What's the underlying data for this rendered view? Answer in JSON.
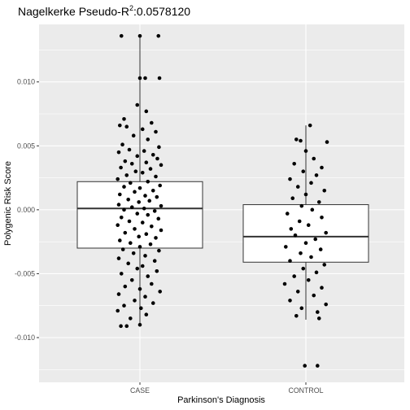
{
  "chart_data": {
    "type": "box-jitter",
    "title_prefix": "Nagelkerke Pseudo-R",
    "title_sup": "2",
    "title_suffix": ":0.0578120",
    "xlabel": "Parkinson's Diagnosis",
    "ylabel": "Polygenic Risk Score",
    "categories": [
      "CASE",
      "CONTROL"
    ],
    "ylim": [
      -0.0135,
      0.0145
    ],
    "yticks": [
      {
        "value": 0.01,
        "label": "0.010"
      },
      {
        "value": 0.005,
        "label": "0.005"
      },
      {
        "value": 0.0,
        "label": "0.000"
      },
      {
        "value": -0.005,
        "label": "-0.005"
      },
      {
        "value": -0.01,
        "label": "-0.010"
      }
    ],
    "grid": true,
    "boxes": [
      {
        "category": "CASE",
        "whisker_low": -0.0091,
        "q1": -0.003,
        "median": 0.0001,
        "q3": 0.0022,
        "whisker_high": 0.0136
      },
      {
        "category": "CONTROL",
        "whisker_low": -0.0086,
        "q1": -0.0041,
        "median": -0.0021,
        "q3": 0.0004,
        "whisker_high": 0.0066
      }
    ],
    "points": [
      {
        "category": "CASE",
        "offset": -0.35,
        "y": 0.0136
      },
      {
        "category": "CASE",
        "offset": 0.0,
        "y": 0.0136
      },
      {
        "category": "CASE",
        "offset": 0.35,
        "y": 0.0136
      },
      {
        "category": "CASE",
        "offset": 0.0,
        "y": 0.0103
      },
      {
        "category": "CASE",
        "offset": 0.1,
        "y": 0.0103
      },
      {
        "category": "CASE",
        "offset": 0.37,
        "y": 0.0103
      },
      {
        "category": "CASE",
        "offset": -0.05,
        "y": 0.0082
      },
      {
        "category": "CASE",
        "offset": 0.12,
        "y": 0.0077
      },
      {
        "category": "CASE",
        "offset": -0.3,
        "y": 0.0071
      },
      {
        "category": "CASE",
        "offset": 0.22,
        "y": 0.0068
      },
      {
        "category": "CASE",
        "offset": -0.38,
        "y": 0.0066
      },
      {
        "category": "CASE",
        "offset": -0.25,
        "y": 0.0065
      },
      {
        "category": "CASE",
        "offset": 0.05,
        "y": 0.0063
      },
      {
        "category": "CASE",
        "offset": 0.3,
        "y": 0.0061
      },
      {
        "category": "CASE",
        "offset": -0.12,
        "y": 0.0058
      },
      {
        "category": "CASE",
        "offset": 0.15,
        "y": 0.0055
      },
      {
        "category": "CASE",
        "offset": -0.33,
        "y": 0.0051
      },
      {
        "category": "CASE",
        "offset": 0.36,
        "y": 0.0049
      },
      {
        "category": "CASE",
        "offset": -0.2,
        "y": 0.0047
      },
      {
        "category": "CASE",
        "offset": 0.08,
        "y": 0.0046
      },
      {
        "category": "CASE",
        "offset": -0.4,
        "y": 0.0045
      },
      {
        "category": "CASE",
        "offset": 0.25,
        "y": 0.0043
      },
      {
        "category": "CASE",
        "offset": -0.05,
        "y": 0.0042
      },
      {
        "category": "CASE",
        "offset": 0.33,
        "y": 0.004
      },
      {
        "category": "CASE",
        "offset": -0.28,
        "y": 0.0038
      },
      {
        "category": "CASE",
        "offset": 0.12,
        "y": 0.0037
      },
      {
        "category": "CASE",
        "offset": -0.15,
        "y": 0.0036
      },
      {
        "category": "CASE",
        "offset": 0.4,
        "y": 0.0035
      },
      {
        "category": "CASE",
        "offset": -0.36,
        "y": 0.0033
      },
      {
        "category": "CASE",
        "offset": 0.2,
        "y": 0.0032
      },
      {
        "category": "CASE",
        "offset": -0.08,
        "y": 0.003
      },
      {
        "category": "CASE",
        "offset": 0.05,
        "y": 0.0029
      },
      {
        "category": "CASE",
        "offset": -0.25,
        "y": 0.0027
      },
      {
        "category": "CASE",
        "offset": 0.3,
        "y": 0.0026
      },
      {
        "category": "CASE",
        "offset": -0.42,
        "y": 0.0024
      },
      {
        "category": "CASE",
        "offset": 0.15,
        "y": 0.0022
      },
      {
        "category": "CASE",
        "offset": -0.18,
        "y": 0.0021
      },
      {
        "category": "CASE",
        "offset": 0.38,
        "y": 0.0019
      },
      {
        "category": "CASE",
        "offset": -0.3,
        "y": 0.0018
      },
      {
        "category": "CASE",
        "offset": 0.0,
        "y": 0.0017
      },
      {
        "category": "CASE",
        "offset": 0.25,
        "y": 0.0015
      },
      {
        "category": "CASE",
        "offset": -0.1,
        "y": 0.0014
      },
      {
        "category": "CASE",
        "offset": -0.38,
        "y": 0.0012
      },
      {
        "category": "CASE",
        "offset": 0.1,
        "y": 0.0011
      },
      {
        "category": "CASE",
        "offset": 0.32,
        "y": 0.001
      },
      {
        "category": "CASE",
        "offset": -0.22,
        "y": 0.0008
      },
      {
        "category": "CASE",
        "offset": 0.18,
        "y": 0.0007
      },
      {
        "category": "CASE",
        "offset": -0.02,
        "y": 0.0006
      },
      {
        "category": "CASE",
        "offset": -0.4,
        "y": 0.0004
      },
      {
        "category": "CASE",
        "offset": 0.4,
        "y": 0.0003
      },
      {
        "category": "CASE",
        "offset": -0.15,
        "y": 0.0002
      },
      {
        "category": "CASE",
        "offset": 0.08,
        "y": 0.0001
      },
      {
        "category": "CASE",
        "offset": -0.3,
        "y": 0.0
      },
      {
        "category": "CASE",
        "offset": 0.28,
        "y": -0.0001
      },
      {
        "category": "CASE",
        "offset": -0.05,
        "y": -0.0003
      },
      {
        "category": "CASE",
        "offset": 0.15,
        "y": -0.0004
      },
      {
        "category": "CASE",
        "offset": -0.35,
        "y": -0.0006
      },
      {
        "category": "CASE",
        "offset": 0.35,
        "y": -0.0007
      },
      {
        "category": "CASE",
        "offset": -0.2,
        "y": -0.0009
      },
      {
        "category": "CASE",
        "offset": 0.05,
        "y": -0.001
      },
      {
        "category": "CASE",
        "offset": -0.42,
        "y": -0.0012
      },
      {
        "category": "CASE",
        "offset": 0.22,
        "y": -0.0013
      },
      {
        "category": "CASE",
        "offset": -0.1,
        "y": -0.0015
      },
      {
        "category": "CASE",
        "offset": 0.4,
        "y": -0.0016
      },
      {
        "category": "CASE",
        "offset": -0.28,
        "y": -0.0018
      },
      {
        "category": "CASE",
        "offset": 0.12,
        "y": -0.0019
      },
      {
        "category": "CASE",
        "offset": -0.02,
        "y": -0.0021
      },
      {
        "category": "CASE",
        "offset": 0.3,
        "y": -0.0022
      },
      {
        "category": "CASE",
        "offset": -0.38,
        "y": -0.0024
      },
      {
        "category": "CASE",
        "offset": -0.18,
        "y": -0.0026
      },
      {
        "category": "CASE",
        "offset": 0.2,
        "y": -0.0027
      },
      {
        "category": "CASE",
        "offset": 0.0,
        "y": -0.0029
      },
      {
        "category": "CASE",
        "offset": -0.32,
        "y": -0.0031
      },
      {
        "category": "CASE",
        "offset": 0.36,
        "y": -0.0032
      },
      {
        "category": "CASE",
        "offset": -0.12,
        "y": -0.0034
      },
      {
        "category": "CASE",
        "offset": 0.1,
        "y": -0.0036
      },
      {
        "category": "CASE",
        "offset": -0.4,
        "y": -0.0038
      },
      {
        "category": "CASE",
        "offset": 0.28,
        "y": -0.004
      },
      {
        "category": "CASE",
        "offset": -0.22,
        "y": -0.0042
      },
      {
        "category": "CASE",
        "offset": 0.05,
        "y": -0.0044
      },
      {
        "category": "CASE",
        "offset": -0.05,
        "y": -0.0046
      },
      {
        "category": "CASE",
        "offset": 0.32,
        "y": -0.0048
      },
      {
        "category": "CASE",
        "offset": -0.35,
        "y": -0.005
      },
      {
        "category": "CASE",
        "offset": 0.15,
        "y": -0.0052
      },
      {
        "category": "CASE",
        "offset": -0.15,
        "y": -0.0055
      },
      {
        "category": "CASE",
        "offset": 0.22,
        "y": -0.0058
      },
      {
        "category": "CASE",
        "offset": -0.28,
        "y": -0.006
      },
      {
        "category": "CASE",
        "offset": 0.0,
        "y": -0.0062
      },
      {
        "category": "CASE",
        "offset": 0.38,
        "y": -0.0064
      },
      {
        "category": "CASE",
        "offset": -0.4,
        "y": -0.0066
      },
      {
        "category": "CASE",
        "offset": 0.1,
        "y": -0.0068
      },
      {
        "category": "CASE",
        "offset": -0.1,
        "y": -0.0071
      },
      {
        "category": "CASE",
        "offset": 0.25,
        "y": -0.0073
      },
      {
        "category": "CASE",
        "offset": -0.3,
        "y": -0.0075
      },
      {
        "category": "CASE",
        "offset": 0.02,
        "y": -0.0077
      },
      {
        "category": "CASE",
        "offset": -0.42,
        "y": -0.0079
      },
      {
        "category": "CASE",
        "offset": 0.12,
        "y": -0.0082
      },
      {
        "category": "CASE",
        "offset": -0.18,
        "y": -0.0085
      },
      {
        "category": "CASE",
        "offset": -0.36,
        "y": -0.0091
      },
      {
        "category": "CASE",
        "offset": -0.25,
        "y": -0.0091
      },
      {
        "category": "CASE",
        "offset": 0.0,
        "y": -0.009
      },
      {
        "category": "CONTROL",
        "offset": 0.08,
        "y": 0.0066
      },
      {
        "category": "CONTROL",
        "offset": -0.18,
        "y": 0.0055
      },
      {
        "category": "CONTROL",
        "offset": -0.1,
        "y": 0.0054
      },
      {
        "category": "CONTROL",
        "offset": 0.4,
        "y": 0.0053
      },
      {
        "category": "CONTROL",
        "offset": 0.0,
        "y": 0.0046
      },
      {
        "category": "CONTROL",
        "offset": 0.15,
        "y": 0.004
      },
      {
        "category": "CONTROL",
        "offset": -0.22,
        "y": 0.0036
      },
      {
        "category": "CONTROL",
        "offset": 0.3,
        "y": 0.0033
      },
      {
        "category": "CONTROL",
        "offset": -0.05,
        "y": 0.003
      },
      {
        "category": "CONTROL",
        "offset": 0.2,
        "y": 0.0027
      },
      {
        "category": "CONTROL",
        "offset": -0.3,
        "y": 0.0024
      },
      {
        "category": "CONTROL",
        "offset": 0.1,
        "y": 0.0021
      },
      {
        "category": "CONTROL",
        "offset": -0.15,
        "y": 0.0018
      },
      {
        "category": "CONTROL",
        "offset": 0.35,
        "y": 0.0015
      },
      {
        "category": "CONTROL",
        "offset": 0.0,
        "y": 0.0012
      },
      {
        "category": "CONTROL",
        "offset": -0.25,
        "y": 0.0009
      },
      {
        "category": "CONTROL",
        "offset": 0.25,
        "y": 0.0006
      },
      {
        "category": "CONTROL",
        "offset": -0.08,
        "y": 0.0003
      },
      {
        "category": "CONTROL",
        "offset": 0.12,
        "y": 0.0
      },
      {
        "category": "CONTROL",
        "offset": -0.35,
        "y": -0.0003
      },
      {
        "category": "CONTROL",
        "offset": 0.3,
        "y": -0.0006
      },
      {
        "category": "CONTROL",
        "offset": -0.12,
        "y": -0.0009
      },
      {
        "category": "CONTROL",
        "offset": 0.05,
        "y": -0.0012
      },
      {
        "category": "CONTROL",
        "offset": -0.28,
        "y": -0.0015
      },
      {
        "category": "CONTROL",
        "offset": 0.38,
        "y": -0.0018
      },
      {
        "category": "CONTROL",
        "offset": -0.2,
        "y": -0.002
      },
      {
        "category": "CONTROL",
        "offset": 0.18,
        "y": -0.0023
      },
      {
        "category": "CONTROL",
        "offset": 0.0,
        "y": -0.0026
      },
      {
        "category": "CONTROL",
        "offset": -0.38,
        "y": -0.0029
      },
      {
        "category": "CONTROL",
        "offset": 0.28,
        "y": -0.0031
      },
      {
        "category": "CONTROL",
        "offset": -0.1,
        "y": -0.0034
      },
      {
        "category": "CONTROL",
        "offset": 0.1,
        "y": -0.0037
      },
      {
        "category": "CONTROL",
        "offset": -0.3,
        "y": -0.004
      },
      {
        "category": "CONTROL",
        "offset": 0.35,
        "y": -0.0043
      },
      {
        "category": "CONTROL",
        "offset": -0.05,
        "y": -0.0046
      },
      {
        "category": "CONTROL",
        "offset": 0.2,
        "y": -0.0049
      },
      {
        "category": "CONTROL",
        "offset": -0.22,
        "y": -0.0052
      },
      {
        "category": "CONTROL",
        "offset": 0.05,
        "y": -0.0055
      },
      {
        "category": "CONTROL",
        "offset": -0.4,
        "y": -0.0058
      },
      {
        "category": "CONTROL",
        "offset": 0.3,
        "y": -0.0061
      },
      {
        "category": "CONTROL",
        "offset": -0.15,
        "y": -0.0064
      },
      {
        "category": "CONTROL",
        "offset": 0.15,
        "y": -0.0067
      },
      {
        "category": "CONTROL",
        "offset": -0.3,
        "y": -0.0071
      },
      {
        "category": "CONTROL",
        "offset": 0.38,
        "y": -0.0074
      },
      {
        "category": "CONTROL",
        "offset": -0.08,
        "y": -0.0077
      },
      {
        "category": "CONTROL",
        "offset": 0.22,
        "y": -0.008
      },
      {
        "category": "CONTROL",
        "offset": -0.18,
        "y": -0.0083
      },
      {
        "category": "CONTROL",
        "offset": 0.25,
        "y": -0.0085
      },
      {
        "category": "CONTROL",
        "offset": -0.02,
        "y": -0.0122
      },
      {
        "category": "CONTROL",
        "offset": 0.22,
        "y": -0.0122
      }
    ]
  }
}
